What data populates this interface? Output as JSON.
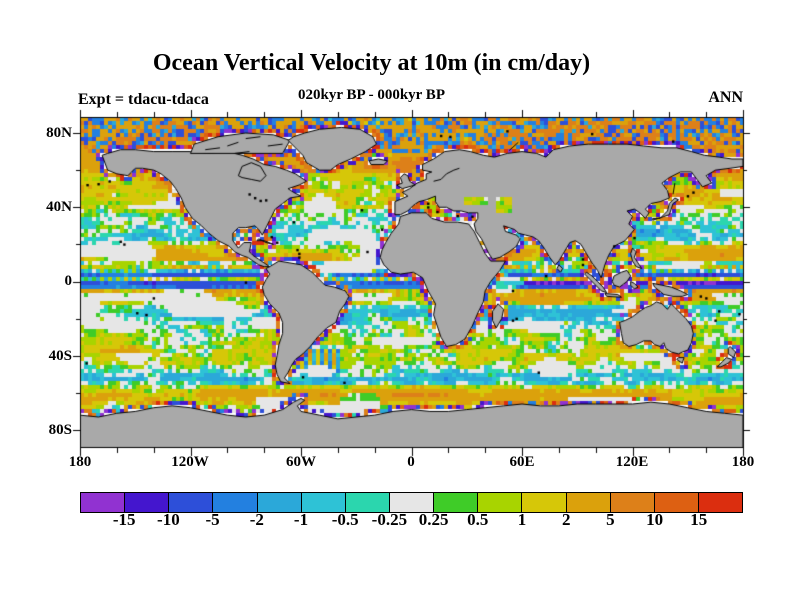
{
  "header": {
    "title": "Ocean Vertical Velocity at 10m (in cm/day)",
    "subtitle": "020kyr BP - 000kyr BP",
    "experiment": "Expt = tdacu-tdaca",
    "season": "ANN"
  },
  "chart_data": {
    "type": "heatmap",
    "subtype": "filled-contour world map, equirectangular projection",
    "title": "Ocean Vertical Velocity at 10m (in cm/day)",
    "subtitle": "020kyr BP - 000kyr BP",
    "experiment": "Expt = tdacu-tdaca",
    "season": "ANN",
    "units": "cm/day",
    "x_axis": {
      "ticks": [
        "180",
        "120W",
        "60W",
        "0",
        "60E",
        "120E",
        "180"
      ],
      "range_deg": [
        -180,
        180
      ],
      "major_tick_deg": 60,
      "minor_tick_deg": 20
    },
    "y_axis": {
      "ticks": [
        "80N",
        "40N",
        "0",
        "40S",
        "80S"
      ],
      "range_deg": [
        -90,
        90
      ],
      "major_tick_deg": 40,
      "minor_tick_deg": 20
    },
    "colorbar": {
      "labels": [
        "-15",
        "-10",
        "-5",
        "-2",
        "-1",
        "-0.5",
        "-0.25",
        "0.25",
        "0.5",
        "1",
        "2",
        "5",
        "10",
        "15"
      ],
      "levels": [
        -15,
        -10,
        -5,
        -2,
        -1,
        -0.5,
        -0.25,
        0.25,
        0.5,
        1,
        2,
        5,
        10,
        15
      ],
      "colors": [
        "#9132d1",
        "#4416ce",
        "#2d4fd9",
        "#2380e0",
        "#2ba8d9",
        "#2ec2d6",
        "#2bd6ae",
        "#e6e6e6",
        "#3fcc28",
        "#a8d400",
        "#d6c708",
        "#dba10c",
        "#dd8019",
        "#dd6012",
        "#db2e0f"
      ]
    },
    "land_color": "#a9a9a9",
    "coast_color": "#000000",
    "frame_color": "#000000",
    "zonal_profile": {
      "lat": [
        90,
        86,
        80,
        74,
        70,
        62,
        55,
        48,
        42,
        36,
        30,
        26,
        22,
        18,
        14,
        11,
        9,
        7,
        5,
        3,
        1,
        -1,
        -3,
        -5,
        -8,
        -11,
        -14,
        -17,
        -20,
        -24,
        -28,
        -32,
        -36,
        -40,
        -44,
        -48,
        -52,
        -55,
        -58,
        -61,
        -64,
        -67,
        -70,
        -75,
        -90
      ],
      "w": [
        2.5,
        2,
        2.5,
        3,
        3,
        3,
        2,
        2,
        1,
        0.2,
        -0.4,
        -0.7,
        -0.4,
        1.2,
        2.5,
        1.5,
        -1.5,
        2.5,
        -2,
        -6,
        2,
        -7,
        -4,
        2.5,
        3,
        1.5,
        -0.5,
        -0.8,
        -0.5,
        0.1,
        0.25,
        0.45,
        0.6,
        0.8,
        0.7,
        -0.3,
        -0.9,
        -0.5,
        1.5,
        3,
        3,
        1,
        -0.5,
        -0.3,
        0
      ]
    }
  }
}
